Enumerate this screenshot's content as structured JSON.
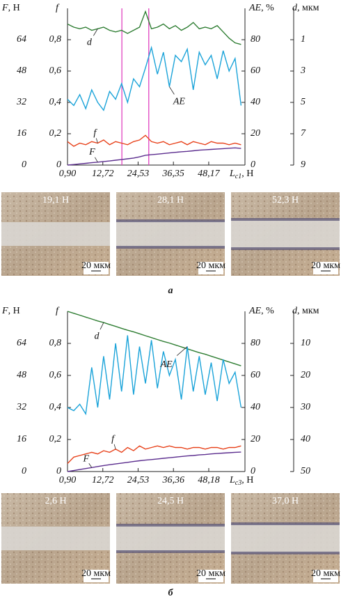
{
  "chart_data": [
    {
      "type": "line",
      "xlabel": {
        "symbol": "L",
        "subscript": "c1",
        "unit": ", Н"
      },
      "xlim": [
        0.9,
        60.3
      ],
      "xticks": [
        {
          "value": 0.9,
          "label": "0,90"
        },
        {
          "value": 12.72,
          "label": "12,72"
        },
        {
          "value": 24.53,
          "label": "24,53"
        },
        {
          "value": 36.35,
          "label": "36,35"
        },
        {
          "value": 48.17,
          "label": "48,17"
        }
      ],
      "axes": [
        {
          "symbol": "F",
          "unit": ", Н",
          "lim": [
            0,
            80
          ],
          "ticks": [
            0,
            16,
            32,
            48,
            64
          ]
        },
        {
          "symbol": "f",
          "lim": [
            0,
            1
          ],
          "ticks": [
            0,
            {
              "value": 0.2,
              "label": "0,2"
            },
            {
              "value": 0.4,
              "label": "0,4"
            },
            {
              "value": 0.6,
              "label": "0,6"
            },
            {
              "value": 0.8,
              "label": "0,8"
            }
          ]
        },
        {
          "symbol": "AE",
          "unit": ", %",
          "lim": [
            0,
            100
          ],
          "ticks": [
            0,
            20,
            40,
            60,
            80
          ]
        },
        {
          "symbol": "d",
          "unit": ", мкм",
          "lim": [
            9,
            -1
          ],
          "ticks": [
            1,
            3,
            5,
            7,
            9
          ]
        }
      ],
      "x": [
        0.9,
        3,
        5,
        7,
        9,
        11,
        13,
        15,
        17,
        19,
        21,
        23,
        25,
        27,
        29,
        31,
        33,
        35,
        37,
        39,
        41,
        43,
        45,
        47,
        49,
        51,
        53,
        55,
        57,
        59
      ],
      "series": [
        {
          "name": "d",
          "axis": 3,
          "color": "#2e7d32",
          "values": [
            0.0,
            0.2,
            0.3,
            0.2,
            0.4,
            0.3,
            0.2,
            0.4,
            0.5,
            0.4,
            0.6,
            0.4,
            0.2,
            -0.8,
            0.3,
            0.2,
            0.0,
            0.3,
            0.1,
            0.4,
            0.2,
            -0.1,
            0.3,
            0.2,
            0.3,
            0.1,
            0.5,
            0.9,
            1.2,
            1.3
          ]
        },
        {
          "name": "AE",
          "axis": 2,
          "color": "#1aa3d9",
          "values": [
            42,
            38,
            45,
            36,
            48,
            40,
            35,
            47,
            42,
            52,
            40,
            55,
            50,
            62,
            75,
            58,
            72,
            50,
            70,
            66,
            74,
            48,
            72,
            64,
            70,
            55,
            73,
            60,
            68,
            38
          ]
        },
        {
          "name": "f",
          "axis": 1,
          "color": "#e8431c",
          "values": [
            0.15,
            0.12,
            0.14,
            0.13,
            0.15,
            0.14,
            0.16,
            0.13,
            0.15,
            0.14,
            0.13,
            0.15,
            0.16,
            0.19,
            0.15,
            0.14,
            0.15,
            0.13,
            0.14,
            0.15,
            0.13,
            0.15,
            0.14,
            0.13,
            0.15,
            0.14,
            0.14,
            0.13,
            0.14,
            0.13
          ]
        },
        {
          "name": "F",
          "axis": 0,
          "color": "#5b2d8e",
          "values": [
            0,
            0.3,
            0.6,
            0.9,
            1.2,
            1.5,
            1.8,
            2.1,
            2.5,
            2.8,
            3.2,
            3.6,
            4.2,
            5.0,
            5.3,
            5.6,
            5.9,
            6.2,
            6.5,
            6.8,
            7.0,
            7.3,
            7.6,
            7.8,
            8.0,
            8.2,
            8.4,
            8.6,
            8.8,
            8.5
          ]
        }
      ],
      "markers": [
        {
          "value": 19.1,
          "color": "#e040c0"
        },
        {
          "value": 28.1,
          "color": "#e040c0"
        }
      ]
    },
    {
      "type": "line",
      "xlabel": {
        "symbol": "L",
        "subscript": "c3",
        "unit": ", Н"
      },
      "xlim": [
        0.9,
        60.3
      ],
      "xticks": [
        {
          "value": 0.9,
          "label": "0,90"
        },
        {
          "value": 12.72,
          "label": "12,72"
        },
        {
          "value": 24.53,
          "label": "24,53"
        },
        {
          "value": 36.36,
          "label": "36,36"
        },
        {
          "value": 48.18,
          "label": "48,18"
        }
      ],
      "axes": [
        {
          "symbol": "F",
          "unit": ", Н",
          "lim": [
            0,
            80
          ],
          "ticks": [
            0,
            16,
            32,
            48,
            64
          ]
        },
        {
          "symbol": "f",
          "lim": [
            0,
            1
          ],
          "ticks": [
            0,
            {
              "value": 0.2,
              "label": "0,2"
            },
            {
              "value": 0.4,
              "label": "0,4"
            },
            {
              "value": 0.6,
              "label": "0,6"
            },
            {
              "value": 0.8,
              "label": "0,8"
            }
          ]
        },
        {
          "symbol": "AE",
          "unit": ", %",
          "lim": [
            0,
            100
          ],
          "ticks": [
            0,
            20,
            40,
            60,
            80
          ]
        },
        {
          "symbol": "d",
          "unit": ", мкм",
          "lim": [
            50,
            0
          ],
          "ticks": [
            10,
            20,
            30,
            40,
            50
          ]
        }
      ],
      "x": [
        0.9,
        3,
        5,
        7,
        9,
        11,
        13,
        15,
        17,
        19,
        21,
        23,
        25,
        27,
        29,
        31,
        33,
        35,
        37,
        39,
        41,
        43,
        45,
        47,
        49,
        51,
        53,
        55,
        57,
        59
      ],
      "series": [
        {
          "name": "d",
          "axis": 3,
          "color": "#2e7d32",
          "values": [
            0,
            0.6,
            1.2,
            1.8,
            2.4,
            3.0,
            3.5,
            4.1,
            4.7,
            5.3,
            5.9,
            6.4,
            7.0,
            7.6,
            8.2,
            8.8,
            9.4,
            9.9,
            10.5,
            11.1,
            11.7,
            12.3,
            12.9,
            13.4,
            14.0,
            14.6,
            15.2,
            15.8,
            16.4,
            17.0
          ]
        },
        {
          "name": "AE",
          "axis": 2,
          "color": "#1aa3d9",
          "values": [
            40,
            38,
            42,
            36,
            65,
            40,
            72,
            45,
            80,
            50,
            85,
            48,
            78,
            55,
            82,
            52,
            75,
            60,
            70,
            45,
            78,
            50,
            72,
            48,
            68,
            44,
            70,
            55,
            62,
            40
          ]
        },
        {
          "name": "f",
          "axis": 1,
          "color": "#e8431c",
          "values": [
            0.05,
            0.09,
            0.1,
            0.11,
            0.12,
            0.11,
            0.13,
            0.12,
            0.14,
            0.12,
            0.15,
            0.13,
            0.16,
            0.14,
            0.15,
            0.16,
            0.15,
            0.16,
            0.15,
            0.15,
            0.14,
            0.15,
            0.15,
            0.14,
            0.15,
            0.15,
            0.14,
            0.15,
            0.15,
            0.16
          ]
        },
        {
          "name": "F",
          "axis": 0,
          "color": "#5b2d8e",
          "values": [
            0,
            0.5,
            1.0,
            1.5,
            2.0,
            2.5,
            3.0,
            3.4,
            3.8,
            4.2,
            4.6,
            5.0,
            5.4,
            5.7,
            6.0,
            6.3,
            6.6,
            6.9,
            7.2,
            7.5,
            7.8,
            8.0,
            8.3,
            8.5,
            8.8,
            9.0,
            9.2,
            9.4,
            9.6,
            9.7
          ]
        }
      ]
    }
  ],
  "micrographs": [
    [
      {
        "caption": "19,1 Н",
        "scale": "20 мкм"
      },
      {
        "caption": "28,1 Н",
        "scale": "20 мкм"
      },
      {
        "caption": "52,3 Н",
        "scale": "20 мкм"
      }
    ],
    [
      {
        "caption": "2,6 Н",
        "scale": "20 мкм"
      },
      {
        "caption": "24,5 Н",
        "scale": "20 мкм"
      },
      {
        "caption": "37,0 Н",
        "scale": "20 мкм"
      }
    ]
  ],
  "panel_labels": [
    "а",
    "б"
  ]
}
